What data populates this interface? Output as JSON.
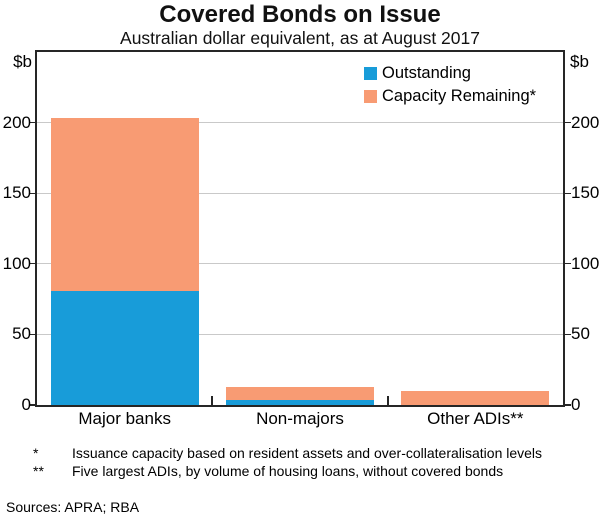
{
  "title": "Covered Bonds on Issue",
  "subtitle": "Australian dollar equivalent, as at August 2017",
  "axis": {
    "unit_left": "$b",
    "unit_right": "$b"
  },
  "chart_data": {
    "type": "bar",
    "stacked": true,
    "title": "Covered Bonds on Issue",
    "subtitle": "Australian dollar equivalent, as at August 2017",
    "categories": [
      "Major banks",
      "Non-majors",
      "Other ADIs**"
    ],
    "series": [
      {
        "name": "Outstanding",
        "color": "#189CD9",
        "values": [
          81,
          3.5,
          0
        ]
      },
      {
        "name": "Capacity Remaining*",
        "color": "#F89B73",
        "values": [
          122,
          9.5,
          10
        ]
      }
    ],
    "ylabel": "$b",
    "ylim": [
      0,
      250
    ],
    "yticks": [
      0,
      50,
      100,
      150,
      200
    ],
    "grid": true,
    "gridline_color": "#c9c9c9",
    "legend_position": "top-right"
  },
  "legend": {
    "items": [
      {
        "label": "Outstanding",
        "color": "#189CD9"
      },
      {
        "label": "Capacity Remaining*",
        "color": "#F89B73"
      }
    ]
  },
  "footnotes": [
    {
      "marker": "*",
      "text": "Issuance capacity based on resident assets and over-collateralisation levels"
    },
    {
      "marker": "**",
      "text": "Five largest ADIs, by volume of housing loans, without covered bonds"
    }
  ],
  "sources": "Sources: APRA; RBA"
}
